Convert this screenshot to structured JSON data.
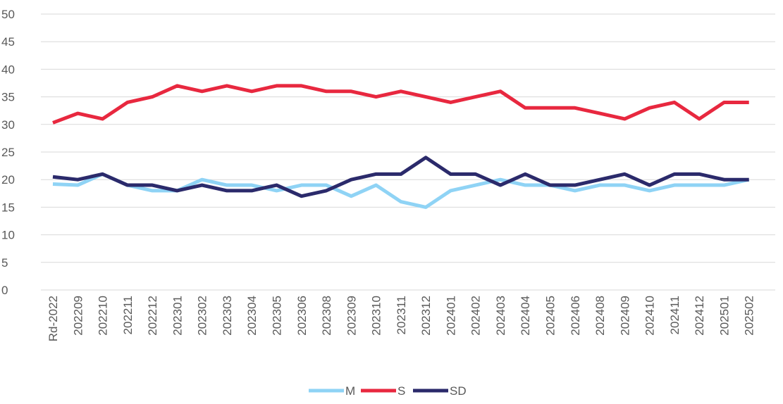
{
  "chart_data": {
    "type": "line",
    "categories": [
      "Rd-2022",
      "202209",
      "202210",
      "202211",
      "202212",
      "202301",
      "202302",
      "202303",
      "202304",
      "202305",
      "202306",
      "202308",
      "202309",
      "202310",
      "202311",
      "202312",
      "202401",
      "202402",
      "202403",
      "202404",
      "202405",
      "202406",
      "202408",
      "202409",
      "202410",
      "202411",
      "202412",
      "202501",
      "202502"
    ],
    "series": [
      {
        "name": "M",
        "color": "#8fd3f5",
        "values": [
          19.2,
          19,
          21,
          19,
          18,
          18,
          20,
          19,
          19,
          18,
          19,
          19,
          17,
          19,
          16,
          15,
          18,
          19,
          20,
          19,
          19,
          18,
          19,
          19,
          18,
          19,
          19,
          19,
          20
        ]
      },
      {
        "name": "S",
        "color": "#e8283f",
        "values": [
          30.3,
          32,
          31,
          34,
          35,
          37,
          36,
          37,
          36,
          37,
          37,
          36,
          36,
          35,
          36,
          35,
          34,
          35,
          36,
          33,
          33,
          33,
          32,
          31,
          33,
          34,
          31,
          34,
          34
        ]
      },
      {
        "name": "SD",
        "color": "#2b2a6b",
        "values": [
          20.5,
          20,
          21,
          19,
          19,
          18,
          19,
          18,
          18,
          19,
          17,
          18,
          20,
          21,
          21,
          24,
          21,
          21,
          19,
          21,
          19,
          19,
          20,
          21,
          19,
          21,
          21,
          20,
          20
        ]
      }
    ],
    "ylim": [
      0,
      50
    ],
    "yticks": [
      0,
      5,
      10,
      15,
      20,
      25,
      30,
      35,
      40,
      45,
      50
    ],
    "grid": true,
    "legend": "bottom"
  }
}
